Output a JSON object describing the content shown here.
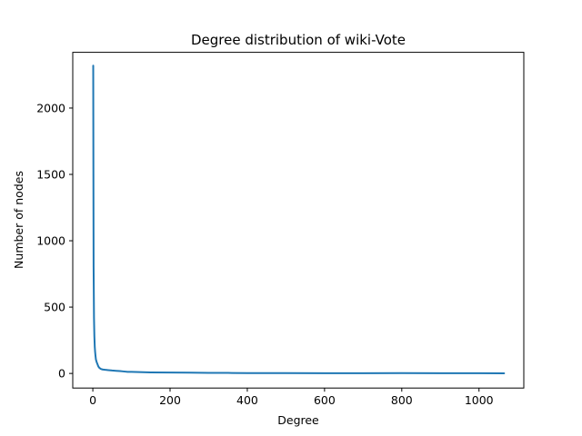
{
  "chart_data": {
    "type": "line",
    "title": "Degree distribution of wiki-Vote",
    "xlabel": "Degree",
    "ylabel": "Number of nodes",
    "xlim": [
      -52,
      1116
    ],
    "ylim": [
      -110,
      2420
    ],
    "xticks": [
      0,
      200,
      400,
      600,
      800,
      1000
    ],
    "yticks": [
      0,
      500,
      1000,
      1500,
      2000
    ],
    "grid": false,
    "legend": "none",
    "series": [
      {
        "color": "#1f77b4",
        "x": [
          1,
          1.5,
          2,
          3,
          4,
          5,
          6,
          7,
          8,
          10,
          12,
          14,
          16,
          18,
          20,
          25,
          30,
          40,
          50,
          60,
          70,
          80,
          90,
          100,
          120,
          150,
          200,
          250,
          300,
          350,
          400,
          500,
          600,
          700,
          800,
          900,
          1000,
          1065
        ],
        "y": [
          2320,
          1500,
          800,
          420,
          280,
          200,
          160,
          130,
          105,
          85,
          70,
          55,
          45,
          40,
          35,
          30,
          28,
          25,
          22,
          20,
          18,
          15,
          12,
          12,
          10,
          8,
          7,
          6,
          4,
          4,
          3,
          3,
          2,
          2,
          3,
          2,
          2,
          1
        ]
      }
    ]
  }
}
